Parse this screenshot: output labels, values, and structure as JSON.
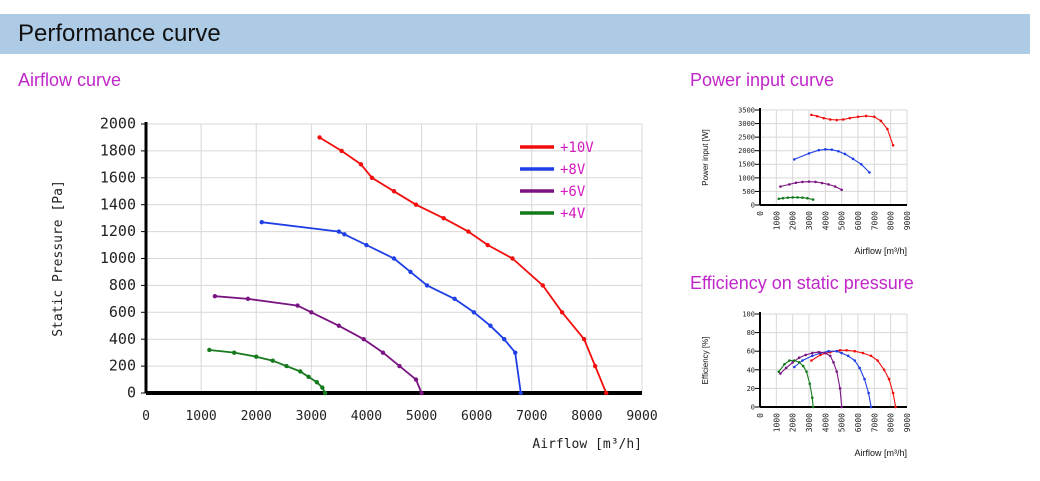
{
  "header": {
    "title": "Performance curve"
  },
  "sections": {
    "airflow_title": "Airflow curve",
    "power_title": "Power input curve",
    "efficiency_title": "Efficiency on static pressure"
  },
  "colors": {
    "+10V": "#f20d0d",
    "+8V": "#1f3fe6",
    "+6V": "#7a1482",
    "+4V": "#157a1c"
  },
  "chart_data": [
    {
      "id": "airflow",
      "type": "line",
      "xlabel": "Airflow [m³/h]",
      "ylabel": "Static Pressure [Pa]",
      "xlim": [
        0,
        9000
      ],
      "ylim": [
        0,
        2000
      ],
      "xticks": [
        0,
        1000,
        2000,
        3000,
        4000,
        5000,
        6000,
        7000,
        8000,
        9000
      ],
      "yticks": [
        0,
        200,
        400,
        600,
        800,
        1000,
        1200,
        1400,
        1600,
        1800,
        2000
      ],
      "grid": true,
      "legend_position": "top-right",
      "series": [
        {
          "name": "+10V",
          "x": [
            3150,
            3550,
            3900,
            4100,
            4500,
            4900,
            5400,
            5850,
            6200,
            6650,
            7200,
            7550,
            7950,
            8150,
            8350
          ],
          "y": [
            1900,
            1800,
            1700,
            1600,
            1500,
            1400,
            1300,
            1200,
            1100,
            1000,
            800,
            600,
            400,
            200,
            0
          ]
        },
        {
          "name": "+8V",
          "x": [
            2100,
            3500,
            3600,
            4000,
            4500,
            4800,
            5100,
            5600,
            5950,
            6250,
            6500,
            6700,
            6800
          ],
          "y": [
            1270,
            1200,
            1180,
            1100,
            1000,
            900,
            800,
            700,
            600,
            500,
            400,
            300,
            0
          ]
        },
        {
          "name": "+6V",
          "x": [
            1250,
            1850,
            2750,
            3000,
            3500,
            3950,
            4300,
            4600,
            4900,
            5000
          ],
          "y": [
            720,
            700,
            650,
            600,
            500,
            400,
            300,
            200,
            100,
            0
          ]
        },
        {
          "name": "+4V",
          "x": [
            1150,
            1600,
            2000,
            2300,
            2550,
            2800,
            2950,
            3100,
            3200,
            3250
          ],
          "y": [
            320,
            300,
            270,
            240,
            200,
            160,
            120,
            80,
            40,
            0
          ]
        }
      ]
    },
    {
      "id": "power",
      "type": "line",
      "xlabel": "Airflow [m³/h]",
      "ylabel": "Power input [W]",
      "xlim": [
        0,
        9000
      ],
      "ylim": [
        0,
        3500
      ],
      "xticks": [
        0,
        1000,
        2000,
        3000,
        4000,
        5000,
        6000,
        7000,
        8000,
        9000
      ],
      "yticks": [
        0,
        500,
        1000,
        1500,
        2000,
        2500,
        3000,
        3500
      ],
      "grid": true,
      "series": [
        {
          "name": "+10V",
          "x": [
            3150,
            3500,
            3900,
            4300,
            4700,
            5100,
            5500,
            6000,
            6500,
            7000,
            7400,
            7800,
            8150
          ],
          "y": [
            3320,
            3270,
            3200,
            3150,
            3130,
            3150,
            3200,
            3250,
            3280,
            3250,
            3100,
            2800,
            2200
          ]
        },
        {
          "name": "+8V",
          "x": [
            2100,
            3000,
            3600,
            4000,
            4400,
            4800,
            5200,
            5700,
            6200,
            6700
          ],
          "y": [
            1680,
            1900,
            2020,
            2050,
            2040,
            1980,
            1880,
            1700,
            1500,
            1200
          ]
        },
        {
          "name": "+6V",
          "x": [
            1250,
            1800,
            2200,
            2600,
            3000,
            3400,
            3800,
            4200,
            4600,
            5000
          ],
          "y": [
            680,
            760,
            820,
            850,
            860,
            850,
            810,
            760,
            680,
            560
          ]
        },
        {
          "name": "+4V",
          "x": [
            1150,
            1400,
            1700,
            2000,
            2300,
            2600,
            2900,
            3250
          ],
          "y": [
            230,
            250,
            270,
            280,
            280,
            270,
            250,
            200
          ]
        }
      ]
    },
    {
      "id": "efficiency",
      "type": "line",
      "xlabel": "Airflow [m³/h]",
      "ylabel": "Efficiency [%]",
      "xlim": [
        0,
        9000
      ],
      "ylim": [
        0,
        100
      ],
      "xticks": [
        0,
        1000,
        2000,
        3000,
        4000,
        5000,
        6000,
        7000,
        8000,
        9000
      ],
      "yticks": [
        0,
        20,
        40,
        60,
        80,
        100
      ],
      "grid": true,
      "series": [
        {
          "name": "+10V",
          "x": [
            3150,
            3700,
            4300,
            4900,
            5300,
            5800,
            6300,
            6800,
            7200,
            7600,
            7900,
            8150,
            8300
          ],
          "y": [
            50,
            56,
            59,
            61,
            61,
            60,
            58,
            55,
            50,
            40,
            30,
            15,
            0
          ]
        },
        {
          "name": "+8V",
          "x": [
            2100,
            2600,
            3200,
            3700,
            4200,
            4700,
            5000,
            5400,
            5800,
            6100,
            6400,
            6650,
            6800
          ],
          "y": [
            43,
            50,
            55,
            58,
            60,
            60,
            58,
            55,
            50,
            42,
            30,
            15,
            0
          ]
        },
        {
          "name": "+6V",
          "x": [
            1250,
            1600,
            2000,
            2400,
            2800,
            3200,
            3600,
            4000,
            4300,
            4500,
            4700,
            4900,
            5000
          ],
          "y": [
            36,
            42,
            48,
            53,
            56,
            58,
            59,
            58,
            55,
            48,
            38,
            20,
            0
          ]
        },
        {
          "name": "+4V",
          "x": [
            1150,
            1500,
            1800,
            2100,
            2400,
            2650,
            2850,
            3050,
            3200,
            3250
          ],
          "y": [
            38,
            46,
            50,
            50,
            48,
            44,
            38,
            25,
            10,
            0
          ]
        }
      ]
    }
  ]
}
